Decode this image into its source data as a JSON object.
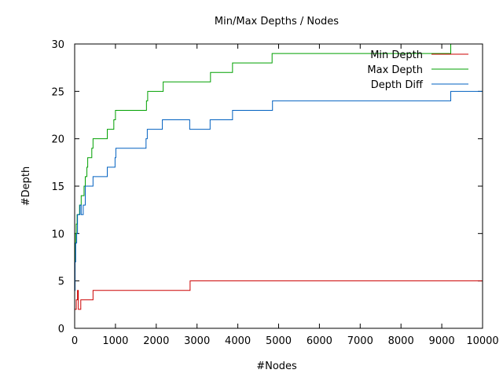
{
  "chart_data": {
    "type": "line",
    "title": "Min/Max Depths / Nodes",
    "xlabel": "#Nodes",
    "ylabel": "#Depth",
    "xlim": [
      0,
      10000
    ],
    "ylim": [
      0,
      30
    ],
    "x_ticks": [
      0,
      1000,
      2000,
      3000,
      4000,
      5000,
      6000,
      7000,
      8000,
      9000,
      10000
    ],
    "y_ticks": [
      0,
      5,
      10,
      15,
      20,
      25,
      30
    ],
    "grid": false,
    "legend_position": "top-right",
    "step_lines": true,
    "series": [
      {
        "name": "Min Depth",
        "color": "#cc0000",
        "points": [
          [
            0,
            2
          ],
          [
            40,
            2
          ],
          [
            40,
            3
          ],
          [
            70,
            3
          ],
          [
            70,
            4
          ],
          [
            90,
            4
          ],
          [
            90,
            2
          ],
          [
            150,
            2
          ],
          [
            150,
            3
          ],
          [
            450,
            3
          ],
          [
            450,
            4
          ],
          [
            2830,
            4
          ],
          [
            2830,
            5
          ],
          [
            10000,
            5
          ]
        ]
      },
      {
        "name": "Max Depth",
        "color": "#00a000",
        "points": [
          [
            0,
            6
          ],
          [
            10,
            6
          ],
          [
            10,
            9
          ],
          [
            25,
            9
          ],
          [
            25,
            10
          ],
          [
            40,
            10
          ],
          [
            40,
            11
          ],
          [
            60,
            11
          ],
          [
            60,
            12
          ],
          [
            120,
            12
          ],
          [
            120,
            13
          ],
          [
            160,
            13
          ],
          [
            160,
            14
          ],
          [
            230,
            14
          ],
          [
            230,
            15
          ],
          [
            260,
            15
          ],
          [
            260,
            16
          ],
          [
            300,
            16
          ],
          [
            300,
            17
          ],
          [
            320,
            17
          ],
          [
            320,
            18
          ],
          [
            420,
            18
          ],
          [
            420,
            19
          ],
          [
            450,
            19
          ],
          [
            450,
            20
          ],
          [
            800,
            20
          ],
          [
            800,
            21
          ],
          [
            960,
            21
          ],
          [
            960,
            22
          ],
          [
            1000,
            22
          ],
          [
            1000,
            23
          ],
          [
            1760,
            23
          ],
          [
            1760,
            24
          ],
          [
            1790,
            24
          ],
          [
            1790,
            25
          ],
          [
            2170,
            25
          ],
          [
            2170,
            26
          ],
          [
            3330,
            26
          ],
          [
            3330,
            27
          ],
          [
            3870,
            27
          ],
          [
            3870,
            28
          ],
          [
            4840,
            28
          ],
          [
            4840,
            29
          ],
          [
            9220,
            29
          ],
          [
            9220,
            30
          ],
          [
            10000,
            30
          ]
        ]
      },
      {
        "name": "Depth Diff",
        "color": "#0060c0",
        "points": [
          [
            0,
            4
          ],
          [
            10,
            4
          ],
          [
            10,
            7
          ],
          [
            25,
            7
          ],
          [
            25,
            9
          ],
          [
            50,
            9
          ],
          [
            50,
            10
          ],
          [
            70,
            10
          ],
          [
            70,
            12
          ],
          [
            130,
            12
          ],
          [
            130,
            13
          ],
          [
            160,
            13
          ],
          [
            160,
            12
          ],
          [
            210,
            12
          ],
          [
            210,
            13
          ],
          [
            260,
            13
          ],
          [
            260,
            15
          ],
          [
            450,
            15
          ],
          [
            450,
            16
          ],
          [
            800,
            16
          ],
          [
            800,
            17
          ],
          [
            990,
            17
          ],
          [
            990,
            18
          ],
          [
            1010,
            18
          ],
          [
            1010,
            19
          ],
          [
            1750,
            19
          ],
          [
            1750,
            20
          ],
          [
            1780,
            20
          ],
          [
            1780,
            21
          ],
          [
            2150,
            21
          ],
          [
            2150,
            22
          ],
          [
            2820,
            22
          ],
          [
            2820,
            21
          ],
          [
            3320,
            21
          ],
          [
            3320,
            22
          ],
          [
            3870,
            22
          ],
          [
            3870,
            23
          ],
          [
            4850,
            23
          ],
          [
            4850,
            24
          ],
          [
            9220,
            24
          ],
          [
            9220,
            25
          ],
          [
            10000,
            25
          ]
        ]
      }
    ]
  }
}
